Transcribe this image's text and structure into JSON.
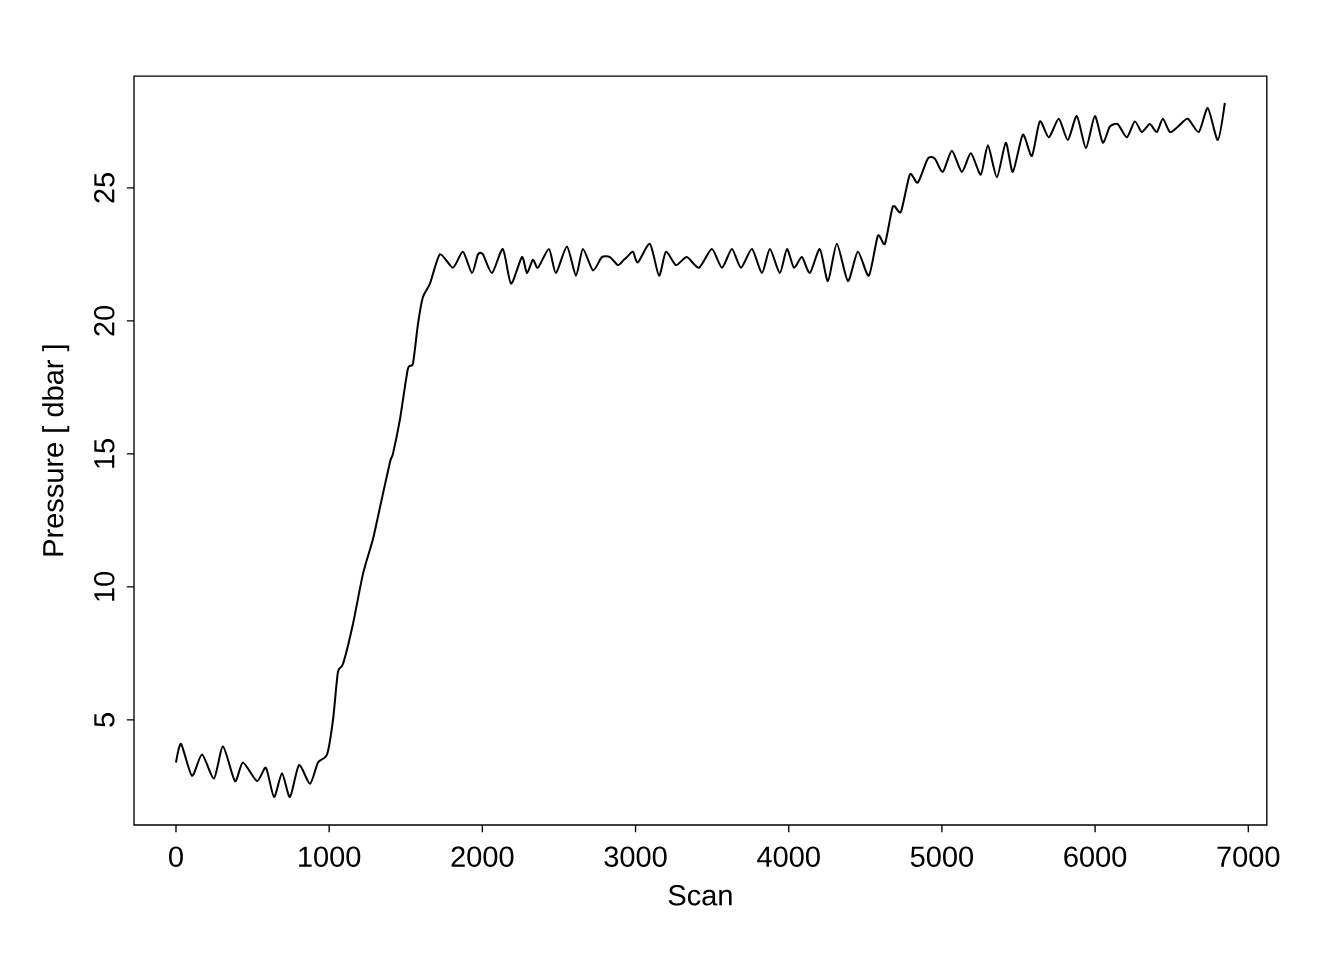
{
  "chart_data": {
    "type": "line",
    "xlabel": "Scan",
    "ylabel": "Pressure [ dbar ]",
    "x": [
      0,
      33,
      104,
      170,
      248,
      307,
      385,
      437,
      529,
      587,
      640,
      692,
      744,
      803,
      875,
      927,
      986,
      1025,
      1057,
      1090,
      1155,
      1221,
      1286,
      1332,
      1397,
      1416,
      1462,
      1514,
      1547,
      1580,
      1612,
      1658,
      1723,
      1808,
      1873,
      1932,
      1971,
      2004,
      2063,
      2134,
      2187,
      2258,
      2291,
      2330,
      2363,
      2435,
      2480,
      2552,
      2611,
      2656,
      2722,
      2780,
      2833,
      2885,
      2924,
      2944,
      2983,
      3015,
      3094,
      3153,
      3198,
      3264,
      3335,
      3414,
      3498,
      3564,
      3629,
      3688,
      3760,
      3825,
      3877,
      3942,
      3988,
      4034,
      4086,
      4138,
      4203,
      4256,
      4314,
      4386,
      4451,
      4523,
      4582,
      4628,
      4680,
      4732,
      4791,
      4843,
      4908,
      4954,
      5006,
      5065,
      5130,
      5189,
      5254,
      5300,
      5359,
      5417,
      5463,
      5528,
      5587,
      5639,
      5698,
      5763,
      5822,
      5881,
      5940,
      5998,
      6050,
      6096,
      6148,
      6207,
      6259,
      6305,
      6357,
      6403,
      6442,
      6488,
      6540,
      6605,
      6677,
      6736,
      6801,
      6847
    ],
    "series": [
      {
        "color": "#000000",
        "values": [
          3.4,
          4.1,
          2.9,
          3.7,
          2.8,
          4.0,
          2.7,
          3.4,
          2.7,
          3.2,
          2.1,
          3.0,
          2.1,
          3.3,
          2.6,
          3.4,
          3.7,
          5.0,
          6.8,
          7.1,
          8.6,
          10.5,
          11.8,
          13.0,
          14.7,
          15.0,
          16.3,
          18.2,
          18.4,
          19.9,
          20.9,
          21.4,
          22.5,
          22.0,
          22.6,
          21.8,
          22.5,
          22.5,
          21.8,
          22.7,
          21.4,
          22.4,
          21.8,
          22.3,
          22.0,
          22.7,
          21.8,
          22.8,
          21.7,
          22.7,
          21.9,
          22.4,
          22.4,
          22.1,
          22.3,
          22.4,
          22.6,
          22.2,
          22.9,
          21.7,
          22.6,
          22.1,
          22.4,
          22.0,
          22.7,
          22.0,
          22.7,
          22.0,
          22.7,
          21.8,
          22.7,
          21.8,
          22.7,
          22.0,
          22.4,
          21.8,
          22.7,
          21.5,
          22.9,
          21.5,
          22.6,
          21.7,
          23.2,
          22.9,
          24.3,
          24.1,
          25.5,
          25.2,
          26.1,
          26.1,
          25.6,
          26.4,
          25.6,
          26.3,
          25.5,
          26.6,
          25.4,
          26.7,
          25.6,
          27.0,
          26.2,
          27.5,
          26.9,
          27.6,
          26.8,
          27.7,
          26.5,
          27.7,
          26.7,
          27.3,
          27.4,
          26.9,
          27.5,
          27.1,
          27.4,
          27.1,
          27.6,
          27.1,
          27.3,
          27.6,
          27.1,
          28.0,
          26.8,
          28.2
        ]
      }
    ],
    "xlim": [
      -274,
      7121
    ],
    "ylim": [
      1.05,
      29.2
    ],
    "xticks": [
      0,
      1000,
      2000,
      3000,
      4000,
      5000,
      6000,
      7000
    ],
    "yticks": [
      5,
      10,
      15,
      20,
      25
    ],
    "grid": false,
    "marker": "none",
    "line_style": "solid"
  }
}
